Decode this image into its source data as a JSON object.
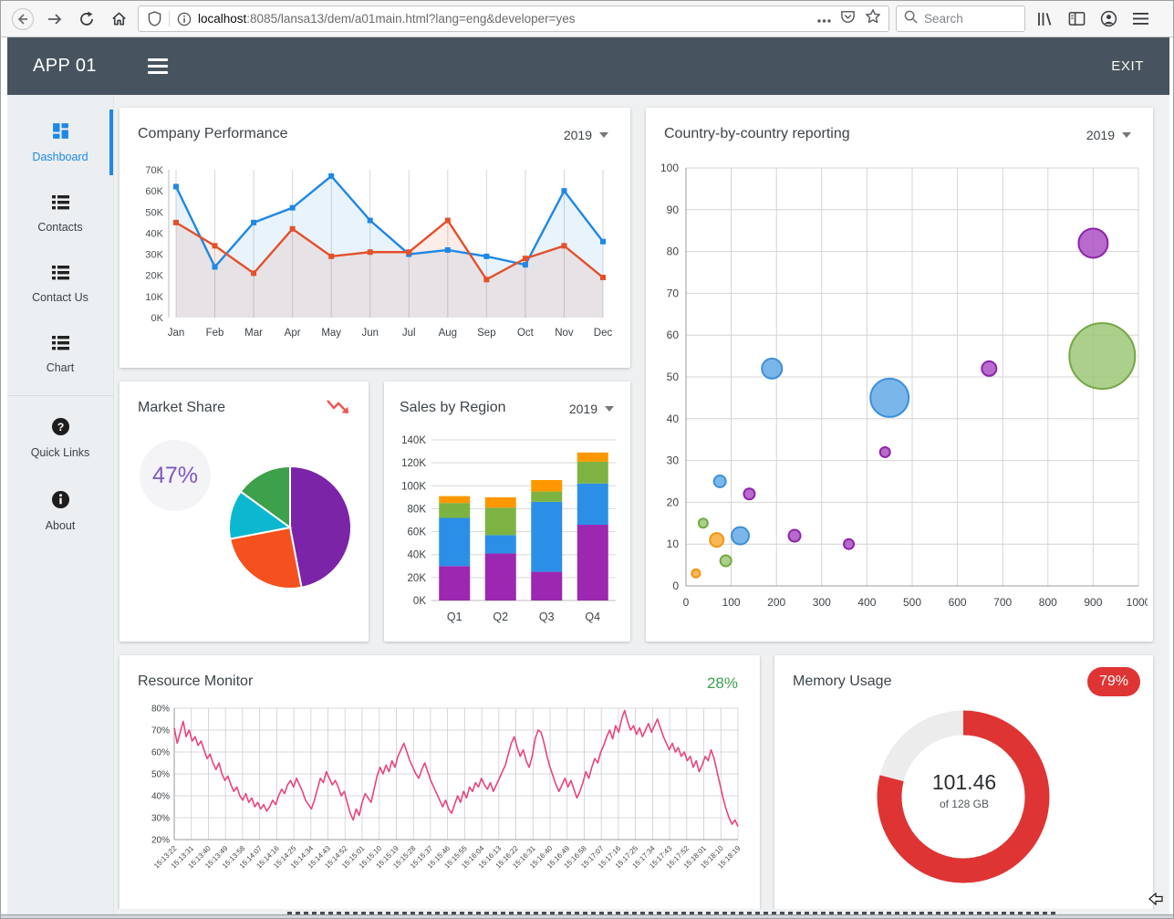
{
  "browser": {
    "url_host": "localhost",
    "url_rest": ":8085/lansa13/dem/a01main.html?lang=eng&developer=yes",
    "search_placeholder": "Search"
  },
  "app_bar": {
    "title": "APP 01",
    "exit_label": "EXIT"
  },
  "sidebar": {
    "items": [
      {
        "label": "Dashboard",
        "active": true
      },
      {
        "label": "Contacts"
      },
      {
        "label": "Contact Us"
      },
      {
        "label": "Chart"
      },
      {
        "label": "Quick Links"
      },
      {
        "label": "About"
      }
    ]
  },
  "cards": {
    "company": {
      "title": "Company Performance",
      "year": "2019"
    },
    "country": {
      "title": "Country-by-country reporting",
      "year": "2019"
    },
    "market": {
      "title": "Market Share",
      "value_label": "47%"
    },
    "sales": {
      "title": "Sales by Region",
      "year": "2019"
    },
    "resource": {
      "title": "Resource Monitor",
      "value_label": "28%"
    },
    "memory": {
      "title": "Memory Usage",
      "badge": "79%",
      "value": "101.46",
      "subtitle": "of 128 GB"
    }
  },
  "icons": {
    "dropdown": "caret-down",
    "trend": "zigzag-arrow-down",
    "search": "magnifier",
    "menu": "hamburger"
  },
  "colors": {
    "accent_blue": "#1e88e5",
    "appbar": "#47545f",
    "resource_pink": "#e8457b",
    "memory_red": "#df3434",
    "ok_green": "#3da04b"
  },
  "chart_data": [
    {
      "id": "company-performance",
      "type": "line",
      "title": "Company Performance",
      "categories": [
        "Jan",
        "Feb",
        "Mar",
        "Apr",
        "May",
        "Jun",
        "Jul",
        "Aug",
        "Sep",
        "Oct",
        "Nov",
        "Dec"
      ],
      "ylim": [
        0,
        70
      ],
      "ytick_step": 10,
      "ylabel_suffix": "K",
      "grid": "vertical",
      "series": [
        {
          "name": "blue",
          "color": "#1e88e5",
          "fill": "rgba(30,136,229,0.10)",
          "values": [
            62,
            24,
            45,
            52,
            67,
            46,
            30,
            32,
            29,
            25,
            60,
            36
          ]
        },
        {
          "name": "red",
          "color": "#e4502a",
          "fill": "rgba(228,80,42,0.10)",
          "values": [
            45,
            34,
            21,
            42,
            29,
            31,
            31,
            46,
            18,
            28,
            34,
            19
          ]
        }
      ]
    },
    {
      "id": "country-bubble",
      "type": "scatter",
      "title": "Country-by-country reporting",
      "xlim": [
        0,
        1000
      ],
      "ylim": [
        0,
        100
      ],
      "xtick_step": 100,
      "ytick_step": 10,
      "grid": "both",
      "palette": {
        "blue": {
          "fill": "#64a9e8",
          "stroke": "#3d8fd9"
        },
        "purple": {
          "fill": "#ab51c4",
          "stroke": "#8e24aa"
        },
        "green": {
          "fill": "#9cc878",
          "stroke": "#74a843"
        },
        "orange": {
          "fill": "#f8ab38",
          "stroke": "#ef9712"
        }
      },
      "points": [
        {
          "x": 22,
          "y": 3,
          "r": 4.5,
          "color": "orange"
        },
        {
          "x": 38,
          "y": 15,
          "r": 5,
          "color": "green"
        },
        {
          "x": 68,
          "y": 11,
          "r": 7.5,
          "color": "orange"
        },
        {
          "x": 88,
          "y": 6,
          "r": 6,
          "color": "green"
        },
        {
          "x": 75,
          "y": 25,
          "r": 6.5,
          "color": "blue"
        },
        {
          "x": 120,
          "y": 12,
          "r": 9.5,
          "color": "blue"
        },
        {
          "x": 140,
          "y": 22,
          "r": 6,
          "color": "purple"
        },
        {
          "x": 190,
          "y": 52,
          "r": 11,
          "color": "blue"
        },
        {
          "x": 240,
          "y": 12,
          "r": 6.5,
          "color": "purple"
        },
        {
          "x": 360,
          "y": 10,
          "r": 5.5,
          "color": "purple"
        },
        {
          "x": 440,
          "y": 32,
          "r": 5.5,
          "color": "purple"
        },
        {
          "x": 450,
          "y": 45,
          "r": 21,
          "color": "blue"
        },
        {
          "x": 670,
          "y": 52,
          "r": 8,
          "color": "purple"
        },
        {
          "x": 900,
          "y": 82,
          "r": 16,
          "color": "purple"
        },
        {
          "x": 920,
          "y": 55,
          "r": 36,
          "color": "green"
        }
      ]
    },
    {
      "id": "market-share",
      "type": "pie",
      "title": "Market Share",
      "center_label": "47%",
      "slices": [
        {
          "label": "purple",
          "value": 47,
          "color": "#7b24a8"
        },
        {
          "label": "orange",
          "value": 25,
          "color": "#f4511e"
        },
        {
          "label": "teal",
          "value": 13,
          "color": "#0bb8d0"
        },
        {
          "label": "green",
          "value": 15,
          "color": "#3da04b"
        }
      ]
    },
    {
      "id": "sales-by-region",
      "type": "bar",
      "title": "Sales by Region",
      "categories": [
        "Q1",
        "Q2",
        "Q3",
        "Q4"
      ],
      "ylim": [
        0,
        140
      ],
      "ytick_step": 20,
      "ylabel_suffix": "K",
      "stacked": true,
      "series": [
        {
          "name": "purple",
          "color": "#9c27b0",
          "values": [
            30,
            41,
            25,
            66
          ]
        },
        {
          "name": "blue",
          "color": "#2b8fe8",
          "values": [
            42,
            16,
            61,
            36
          ]
        },
        {
          "name": "green",
          "color": "#7cb342",
          "values": [
            13,
            24,
            9,
            19
          ]
        },
        {
          "name": "orange",
          "color": "#ff9800",
          "values": [
            6,
            9,
            10,
            8
          ]
        }
      ]
    },
    {
      "id": "resource-monitor",
      "type": "line",
      "title": "Resource Monitor",
      "color": "#e8457b",
      "ylim": [
        20,
        80
      ],
      "ytick_step": 10,
      "ylabel_suffix": "%",
      "grid": "both",
      "x_labels": [
        "15:13:22",
        "15:13:31",
        "15:13:40",
        "15:13:49",
        "15:13:58",
        "15:14:07",
        "15:14:16",
        "15:14:25",
        "15:14:34",
        "15:14:43",
        "15:14:52",
        "15:15:01",
        "15:15:10",
        "15:15:19",
        "15:15:28",
        "15:15:37",
        "15:15:46",
        "15:15:55",
        "15:16:04",
        "15:16:13",
        "15:16:22",
        "15:16:31",
        "15:16:40",
        "15:16:49",
        "15:16:58",
        "15:17:07",
        "15:17:16",
        "15:17:25",
        "15:17:34",
        "15:17:43",
        "15:17:52",
        "15:18:01",
        "15:18:10",
        "15:18:19"
      ],
      "values": [
        71,
        64,
        69,
        74,
        67,
        70,
        65,
        67,
        63,
        65,
        61,
        57,
        59,
        55,
        52,
        55,
        50,
        47,
        49,
        45,
        42,
        44,
        40,
        38,
        41,
        37,
        39,
        35,
        37,
        34,
        36,
        33,
        35,
        38,
        36,
        40,
        43,
        41,
        45,
        47,
        44,
        48,
        45,
        42,
        38,
        36,
        34,
        38,
        43,
        48,
        46,
        51,
        48,
        45,
        47,
        44,
        40,
        42,
        37,
        32,
        29,
        34,
        31,
        37,
        41,
        39,
        37,
        43,
        49,
        53,
        50,
        54,
        51,
        56,
        53,
        58,
        61,
        64,
        60,
        56,
        53,
        50,
        48,
        52,
        55,
        51,
        47,
        44,
        41,
        38,
        35,
        38,
        34,
        32,
        36,
        40,
        37,
        42,
        39,
        44,
        42,
        46,
        44,
        48,
        45,
        43,
        46,
        42,
        45,
        48,
        51,
        54,
        59,
        64,
        67,
        62,
        58,
        61,
        56,
        53,
        58,
        66,
        70,
        69,
        64,
        58,
        53,
        49,
        45,
        42,
        45,
        48,
        44,
        47,
        43,
        39,
        42,
        46,
        51,
        48,
        53,
        57,
        55,
        60,
        63,
        67,
        70,
        66,
        72,
        69,
        75,
        79,
        74,
        70,
        72,
        68,
        71,
        67,
        70,
        73,
        69,
        72,
        75,
        71,
        67,
        64,
        61,
        64,
        60,
        62,
        58,
        60,
        56,
        58,
        53,
        56,
        51,
        54,
        58,
        56,
        61,
        57,
        51,
        45,
        39,
        34,
        30,
        27,
        29,
        26
      ]
    },
    {
      "id": "memory-usage",
      "type": "donut",
      "title": "Memory Usage",
      "percent": 79,
      "color": "#df3434",
      "track_color": "#ececec",
      "center_value": "101.46",
      "center_sub": "of 128 GB"
    }
  ]
}
